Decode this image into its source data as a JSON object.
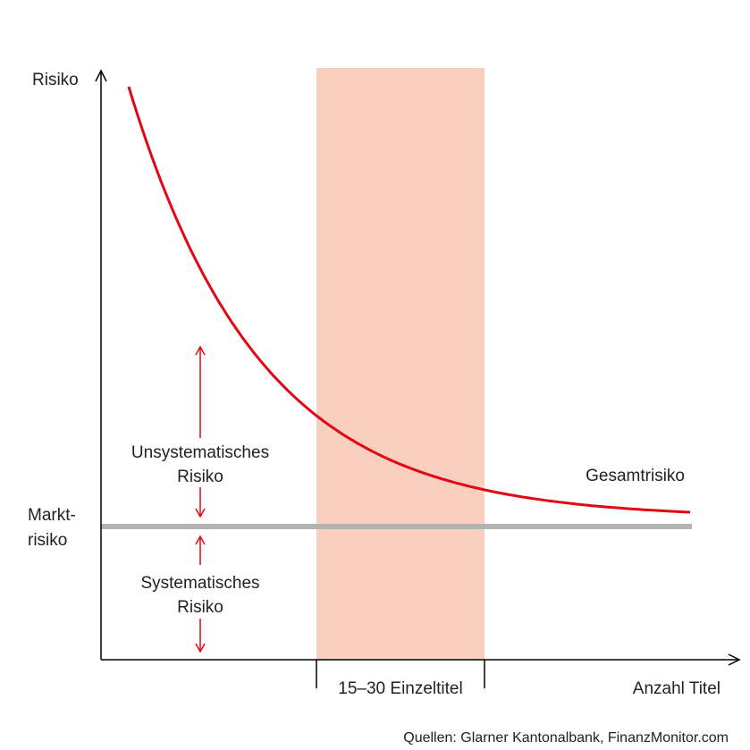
{
  "chart_data": {
    "type": "line",
    "title": "",
    "xlabel": "Anzahl Titel",
    "ylabel": "Risiko",
    "series": [
      {
        "name": "Gesamtrisiko",
        "color": "#e30613",
        "shape": "hyperbolic decay toward market risk level"
      }
    ],
    "reference_lines": [
      {
        "label": "Markt-\nrisiko",
        "label_lines": [
          "Markt-",
          "risiko"
        ],
        "color": "#b3b3b3"
      }
    ],
    "highlight_band": {
      "label": "15–30 Einzeltitel",
      "range": [
        15,
        30
      ],
      "color": "#f9d0c0"
    },
    "annotations": [
      {
        "id": "unsystematic",
        "lines": [
          "Unsystematisches",
          "Risiko"
        ],
        "arrow_color": "#e30613"
      },
      {
        "id": "systematic",
        "lines": [
          "Systematisches",
          "Risiko"
        ],
        "arrow_color": "#e30613"
      }
    ],
    "ticks": {
      "x": [],
      "y": []
    },
    "grid": false,
    "legend": "none"
  },
  "source": "Quellen: Glarner Kantonalbank, FinanzMonitor.com"
}
